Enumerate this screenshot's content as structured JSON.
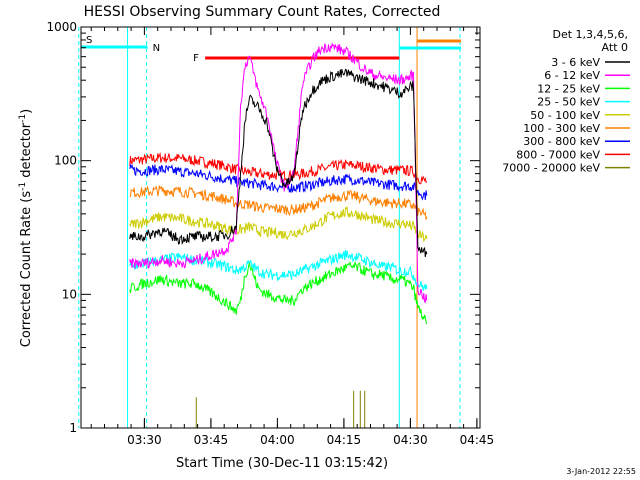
{
  "chart_data": {
    "type": "line",
    "title": "HESSI Observing Summary Count Rates, Corrected",
    "xlabel": "Start Time (30-Dec-11 03:15:42)",
    "ylabel": "Corrected Count Rate (s",
    "ylabel_sup1": "-1",
    "ylabel_mid": " detector",
    "ylabel_sup2": "-1",
    "ylabel_end": ")",
    "x_unit": "minutes since 03:15:42",
    "xlim": [
      0,
      90
    ],
    "ylim": [
      1,
      1000
    ],
    "y_scale": "log",
    "x_ticks": [
      {
        "x": 14.3,
        "label": "03:30"
      },
      {
        "x": 29.3,
        "label": "03:45"
      },
      {
        "x": 44.3,
        "label": "04:00"
      },
      {
        "x": 59.3,
        "label": "04:15"
      },
      {
        "x": 74.3,
        "label": "04:30"
      },
      {
        "x": 89.3,
        "label": "04:45"
      }
    ],
    "y_ticks": [
      {
        "y": 1,
        "label": "1"
      },
      {
        "y": 10,
        "label": "10"
      },
      {
        "y": 100,
        "label": "100"
      },
      {
        "y": 1000,
        "label": "1000"
      }
    ],
    "legend": {
      "title_line1": "Det 1,3,4,5,6,",
      "title_line2": "Att 0",
      "position": "right"
    },
    "series": [
      {
        "name": "3 - 6 keV",
        "color": "#000000",
        "points": [
          [
            11,
            27
          ],
          [
            14,
            27
          ],
          [
            18,
            30
          ],
          [
            22,
            26
          ],
          [
            26,
            27
          ],
          [
            30,
            27
          ],
          [
            33,
            28
          ],
          [
            35,
            32
          ],
          [
            37,
            200
          ],
          [
            38,
            290
          ],
          [
            40,
            250
          ],
          [
            42,
            190
          ],
          [
            44,
            90
          ],
          [
            46,
            65
          ],
          [
            48,
            75
          ],
          [
            50,
            240
          ],
          [
            52,
            330
          ],
          [
            54,
            390
          ],
          [
            56,
            420
          ],
          [
            58,
            440
          ],
          [
            60,
            450
          ],
          [
            62,
            420
          ],
          [
            64,
            400
          ],
          [
            66,
            380
          ],
          [
            68,
            360
          ],
          [
            70,
            340
          ],
          [
            72,
            320
          ],
          [
            74,
            350
          ],
          [
            75,
            365
          ],
          [
            76,
            22
          ],
          [
            78,
            20
          ]
        ]
      },
      {
        "name": "6 - 12 keV",
        "color": "#ff00ff",
        "points": [
          [
            11,
            17
          ],
          [
            14,
            17
          ],
          [
            18,
            18
          ],
          [
            22,
            17
          ],
          [
            26,
            18
          ],
          [
            30,
            20
          ],
          [
            33,
            22
          ],
          [
            35,
            30
          ],
          [
            36,
            260
          ],
          [
            37,
            520
          ],
          [
            38,
            600
          ],
          [
            40,
            330
          ],
          [
            42,
            220
          ],
          [
            44,
            100
          ],
          [
            46,
            62
          ],
          [
            48,
            80
          ],
          [
            50,
            380
          ],
          [
            52,
            560
          ],
          [
            54,
            680
          ],
          [
            56,
            720
          ],
          [
            58,
            690
          ],
          [
            60,
            640
          ],
          [
            62,
            560
          ],
          [
            64,
            480
          ],
          [
            66,
            440
          ],
          [
            68,
            420
          ],
          [
            70,
            410
          ],
          [
            72,
            400
          ],
          [
            74,
            420
          ],
          [
            75,
            440
          ],
          [
            76,
            11
          ],
          [
            78,
            9
          ]
        ]
      },
      {
        "name": "12 - 25 keV",
        "color": "#00ff00",
        "points": [
          [
            11,
            11
          ],
          [
            14,
            12
          ],
          [
            18,
            13
          ],
          [
            22,
            12
          ],
          [
            26,
            12
          ],
          [
            30,
            10
          ],
          [
            33,
            8.5
          ],
          [
            35,
            7.5
          ],
          [
            36,
            9
          ],
          [
            37,
            14
          ],
          [
            38,
            17
          ],
          [
            40,
            11
          ],
          [
            42,
            10
          ],
          [
            44,
            9.5
          ],
          [
            46,
            9
          ],
          [
            48,
            9
          ],
          [
            50,
            11
          ],
          [
            52,
            12
          ],
          [
            54,
            13
          ],
          [
            56,
            14
          ],
          [
            58,
            15
          ],
          [
            60,
            16
          ],
          [
            62,
            16
          ],
          [
            64,
            15
          ],
          [
            66,
            14
          ],
          [
            68,
            14
          ],
          [
            70,
            13
          ],
          [
            72,
            13
          ],
          [
            74,
            12
          ],
          [
            75,
            11
          ],
          [
            76,
            8
          ],
          [
            78,
            6
          ]
        ]
      },
      {
        "name": "25 - 50 keV",
        "color": "#00ffff",
        "points": [
          [
            11,
            16
          ],
          [
            14,
            17
          ],
          [
            18,
            18
          ],
          [
            22,
            19
          ],
          [
            26,
            18
          ],
          [
            30,
            17
          ],
          [
            33,
            16
          ],
          [
            35,
            15
          ],
          [
            37,
            16
          ],
          [
            38,
            17
          ],
          [
            40,
            15
          ],
          [
            42,
            14
          ],
          [
            44,
            14
          ],
          [
            46,
            14
          ],
          [
            48,
            14
          ],
          [
            50,
            15
          ],
          [
            52,
            16
          ],
          [
            54,
            17
          ],
          [
            56,
            18
          ],
          [
            58,
            19
          ],
          [
            60,
            20
          ],
          [
            62,
            19
          ],
          [
            64,
            18
          ],
          [
            66,
            17
          ],
          [
            68,
            16
          ],
          [
            70,
            16
          ],
          [
            72,
            15
          ],
          [
            74,
            15
          ],
          [
            75,
            14
          ],
          [
            76,
            12
          ],
          [
            78,
            11
          ]
        ]
      },
      {
        "name": "50 - 100 keV",
        "color": "#cccc00",
        "points": [
          [
            11,
            33
          ],
          [
            14,
            35
          ],
          [
            18,
            38
          ],
          [
            22,
            37
          ],
          [
            26,
            35
          ],
          [
            30,
            33
          ],
          [
            33,
            31
          ],
          [
            35,
            30
          ],
          [
            37,
            31
          ],
          [
            38,
            32
          ],
          [
            40,
            30
          ],
          [
            42,
            29
          ],
          [
            44,
            29
          ],
          [
            46,
            28
          ],
          [
            48,
            29
          ],
          [
            50,
            30
          ],
          [
            52,
            32
          ],
          [
            54,
            35
          ],
          [
            56,
            38
          ],
          [
            58,
            40
          ],
          [
            60,
            41
          ],
          [
            62,
            40
          ],
          [
            64,
            38
          ],
          [
            66,
            36
          ],
          [
            68,
            35
          ],
          [
            70,
            34
          ],
          [
            72,
            34
          ],
          [
            74,
            33
          ],
          [
            75,
            32
          ],
          [
            76,
            28
          ],
          [
            78,
            26
          ]
        ]
      },
      {
        "name": "100 - 300 keV",
        "color": "#ff8000",
        "points": [
          [
            11,
            58
          ],
          [
            14,
            58
          ],
          [
            18,
            60
          ],
          [
            22,
            59
          ],
          [
            26,
            57
          ],
          [
            30,
            54
          ],
          [
            33,
            51
          ],
          [
            35,
            48
          ],
          [
            37,
            47
          ],
          [
            38,
            47
          ],
          [
            40,
            45
          ],
          [
            42,
            44
          ],
          [
            44,
            44
          ],
          [
            46,
            43
          ],
          [
            48,
            43
          ],
          [
            50,
            44
          ],
          [
            52,
            46
          ],
          [
            54,
            49
          ],
          [
            56,
            52
          ],
          [
            58,
            54
          ],
          [
            60,
            55
          ],
          [
            62,
            54
          ],
          [
            64,
            52
          ],
          [
            66,
            50
          ],
          [
            68,
            49
          ],
          [
            70,
            48
          ],
          [
            72,
            48
          ],
          [
            74,
            47
          ],
          [
            75,
            46
          ],
          [
            76,
            42
          ],
          [
            78,
            38
          ]
        ]
      },
      {
        "name": "300 - 800 keV",
        "color": "#0000ff",
        "points": [
          [
            11,
            85
          ],
          [
            14,
            84
          ],
          [
            18,
            86
          ],
          [
            22,
            83
          ],
          [
            26,
            80
          ],
          [
            30,
            76
          ],
          [
            33,
            72
          ],
          [
            35,
            70
          ],
          [
            37,
            68
          ],
          [
            38,
            68
          ],
          [
            40,
            66
          ],
          [
            42,
            65
          ],
          [
            44,
            64
          ],
          [
            46,
            63
          ],
          [
            48,
            63
          ],
          [
            50,
            64
          ],
          [
            52,
            66
          ],
          [
            54,
            68
          ],
          [
            56,
            70
          ],
          [
            58,
            72
          ],
          [
            60,
            73
          ],
          [
            62,
            72
          ],
          [
            64,
            70
          ],
          [
            66,
            68
          ],
          [
            68,
            67
          ],
          [
            70,
            66
          ],
          [
            72,
            65
          ],
          [
            74,
            65
          ],
          [
            75,
            64
          ],
          [
            76,
            58
          ],
          [
            78,
            55
          ]
        ]
      },
      {
        "name": "800 - 7000 keV",
        "color": "#ff0000",
        "points": [
          [
            11,
            100
          ],
          [
            14,
            102
          ],
          [
            18,
            105
          ],
          [
            22,
            104
          ],
          [
            26,
            100
          ],
          [
            30,
            95
          ],
          [
            33,
            90
          ],
          [
            35,
            86
          ],
          [
            37,
            83
          ],
          [
            38,
            82
          ],
          [
            40,
            80
          ],
          [
            42,
            79
          ],
          [
            44,
            78
          ],
          [
            46,
            78
          ],
          [
            48,
            78
          ],
          [
            50,
            80
          ],
          [
            52,
            83
          ],
          [
            54,
            86
          ],
          [
            56,
            89
          ],
          [
            58,
            92
          ],
          [
            60,
            93
          ],
          [
            62,
            92
          ],
          [
            64,
            90
          ],
          [
            66,
            88
          ],
          [
            68,
            86
          ],
          [
            70,
            85
          ],
          [
            72,
            85
          ],
          [
            74,
            84
          ],
          [
            75,
            83
          ],
          [
            76,
            74
          ],
          [
            78,
            70
          ]
        ]
      },
      {
        "name": "7000 - 20000 keV",
        "color": "#808000",
        "points": []
      }
    ],
    "attenuator_bars": [
      {
        "label": "S",
        "color": "#ff8000"
      },
      {
        "label": "N",
        "color": "#00ffff"
      },
      {
        "label": "F",
        "color": "#ff0000"
      }
    ],
    "footer_date": "3-Jan-2012 22:55"
  }
}
